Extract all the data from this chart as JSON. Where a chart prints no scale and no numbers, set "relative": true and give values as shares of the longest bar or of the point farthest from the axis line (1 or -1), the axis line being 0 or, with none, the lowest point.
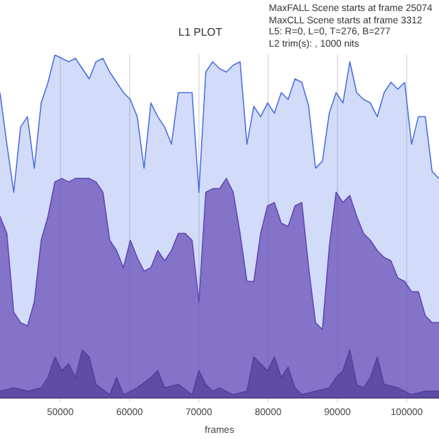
{
  "chart_data": {
    "type": "area",
    "title": "L1 PLOT",
    "xlabel": "frames",
    "relative": true,
    "tick_labels": "x",
    "grid": "x",
    "annotations": [
      "MaxFALL Scene starts at frame 25074",
      "MaxCLL Scene starts at frame 3312",
      "L5: R=0, L=0, T=276, B=277",
      "L2 trim(s): , 1000 nits"
    ],
    "xlim": [
      41300,
      104660
    ],
    "xticks": [
      50000,
      60000,
      70000,
      80000,
      90000,
      100000
    ],
    "x": [
      41300,
      42290,
      43280,
      44270,
      45260,
      46250,
      47240,
      48230,
      49220,
      50210,
      51200,
      52190,
      53180,
      54170,
      55160,
      56150,
      57140,
      58130,
      59120,
      60110,
      61100,
      62090,
      63080,
      64070,
      65060,
      66050,
      67040,
      68030,
      69020,
      70010,
      71000,
      71990,
      72980,
      73970,
      74960,
      75950,
      76940,
      77930,
      78920,
      79910,
      80900,
      81890,
      82880,
      83870,
      84860,
      85850,
      86840,
      87830,
      88820,
      89810,
      90800,
      91790,
      92780,
      93770,
      94760,
      95750,
      96740,
      97730,
      98720,
      99710,
      100700,
      101690,
      102680,
      103670,
      104660
    ],
    "series": [
      {
        "color": "#4a6fe0",
        "values": [
          0.89,
          0.74,
          0.6,
          0.79,
          0.82,
          0.67,
          0.86,
          0.92,
          1,
          0.99,
          0.98,
          0.99,
          0.96,
          0.93,
          0.98,
          0.99,
          0.95,
          0.92,
          0.89,
          0.87,
          0.82,
          0.67,
          0.86,
          0.82,
          0.79,
          0.74,
          0.89,
          0.89,
          0.89,
          0.6,
          0.95,
          0.98,
          0.96,
          0.95,
          0.97,
          0.98,
          0.74,
          0.85,
          0.82,
          0.86,
          0.83,
          0.89,
          0.87,
          0.93,
          0.92,
          0.85,
          0.67,
          0.69,
          0.83,
          0.89,
          0.86,
          0.98,
          0.89,
          0.87,
          0.86,
          0.82,
          0.89,
          0.92,
          0.9,
          0.92,
          0.74,
          0.82,
          0.82,
          0.66,
          0.64
        ]
      },
      {
        "color": "#6a3aa8",
        "values": [
          0.53,
          0.48,
          0.25,
          0.22,
          0.21,
          0.28,
          0.46,
          0.53,
          0.63,
          0.64,
          0.63,
          0.64,
          0.64,
          0.64,
          0.63,
          0.6,
          0.46,
          0.43,
          0.38,
          0.46,
          0.41,
          0.37,
          0.38,
          0.43,
          0.4,
          0.43,
          0.48,
          0.48,
          0.46,
          0.28,
          0.6,
          0.61,
          0.61,
          0.64,
          0.6,
          0.48,
          0.34,
          0.34,
          0.48,
          0.56,
          0.57,
          0.51,
          0.5,
          0.56,
          0.57,
          0.38,
          0.22,
          0.2,
          0.44,
          0.6,
          0.57,
          0.59,
          0.53,
          0.48,
          0.46,
          0.43,
          0.41,
          0.4,
          0.35,
          0.34,
          0.31,
          0.31,
          0.24,
          0.22,
          0.22
        ]
      },
      {
        "color": "#2a1a38",
        "x": [
          41300,
          43280,
          45260,
          47240,
          48230,
          49220,
          50210,
          51200,
          52190,
          53180,
          54170,
          55160,
          57140,
          58130,
          59120,
          61100,
          63080,
          64070,
          65060,
          67040,
          69020,
          70010,
          71000,
          71990,
          72980,
          74960,
          76940,
          77930,
          78920,
          79910,
          80900,
          81890,
          82880,
          83870,
          84860,
          86840,
          88820,
          89810,
          90800,
          91790,
          92780,
          93770,
          94760,
          95750,
          96740,
          98720,
          100700,
          102680,
          104660
        ],
        "values": [
          0.02,
          0.03,
          0.02,
          0.03,
          0.06,
          0.12,
          0.08,
          0.1,
          0.06,
          0.14,
          0.12,
          0.04,
          0.01,
          0.06,
          0.01,
          0.03,
          0.06,
          0.08,
          0.03,
          0.04,
          0.01,
          0.08,
          0.04,
          0.02,
          0.03,
          0.01,
          0.02,
          0.12,
          0.1,
          0.08,
          0.12,
          0.06,
          0.09,
          0.03,
          0.01,
          0.02,
          0.03,
          0.06,
          0.08,
          0.14,
          0.04,
          0.03,
          0.06,
          0.12,
          0.04,
          0.03,
          0.01,
          0.02,
          0.02
        ]
      }
    ]
  }
}
